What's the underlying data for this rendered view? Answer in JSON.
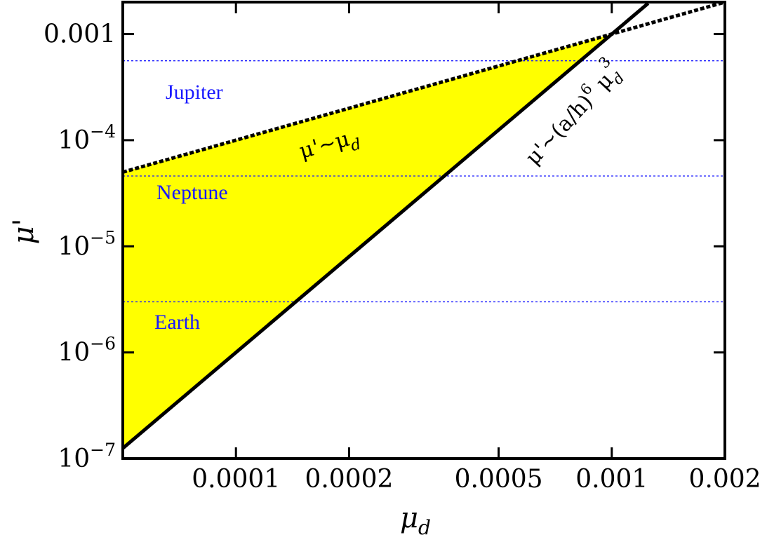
{
  "chart_data": {
    "type": "line",
    "xlabel": "μ",
    "xlabel_sub": "d",
    "ylabel": "μ'",
    "xscale": "log",
    "yscale": "log",
    "xlim": [
      5e-05,
      0.002
    ],
    "ylim": [
      1e-07,
      0.002
    ],
    "x_ticks": [
      {
        "value": 0.0001,
        "label": "0.0001"
      },
      {
        "value": 0.0002,
        "label": "0.0002"
      },
      {
        "value": 0.0005,
        "label": "0.0005"
      },
      {
        "value": 0.001,
        "label": "0.001"
      },
      {
        "value": 0.002,
        "label": "0.002"
      }
    ],
    "y_ticks": [
      {
        "value": 0.001,
        "base": "0.001",
        "exp": ""
      },
      {
        "value": 0.0001,
        "base": "10",
        "exp": "−4"
      },
      {
        "value": 1e-05,
        "base": "10",
        "exp": "−5"
      },
      {
        "value": 1e-06,
        "base": "10",
        "exp": "−6"
      },
      {
        "value": 1e-07,
        "base": "10",
        "exp": "−7"
      }
    ],
    "series": [
      {
        "key": "upper",
        "style": "dotted",
        "color": "#000000",
        "x": [
          5e-05,
          0.002
        ],
        "y": [
          5e-05,
          0.002
        ]
      },
      {
        "key": "lower",
        "style": "solid",
        "color": "#000000",
        "x": [
          5e-05,
          0.00125
        ],
        "y": [
          1.25e-07,
          0.00195
        ]
      }
    ],
    "fill": {
      "color": "#ffff00",
      "between": [
        "upper",
        "lower"
      ]
    },
    "reference_lines": [
      {
        "label": "Jupiter",
        "y": 0.00056,
        "color": "#1a1aff"
      },
      {
        "label": "Neptune",
        "y": 4.6e-05,
        "color": "#1a1aff"
      },
      {
        "label": "Earth",
        "y": 3e-06,
        "color": "#1a1aff"
      }
    ],
    "annotations": {
      "upper_main": "μ'∼μ",
      "upper_sub": "d",
      "lower_main": "μ'∼(a/h)",
      "lower_exp6": "6",
      "lower_mu": " μ",
      "lower_sub": "d",
      "lower_exp3": "3"
    }
  }
}
